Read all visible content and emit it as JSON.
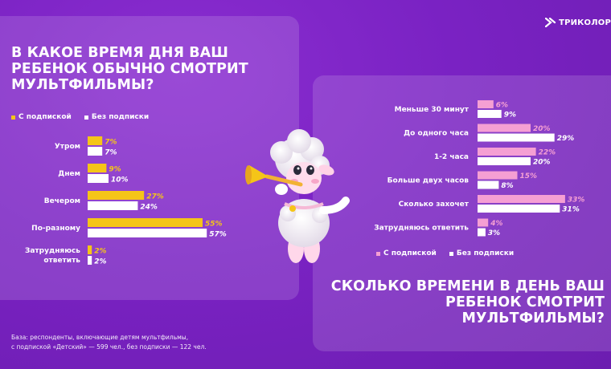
{
  "brand": {
    "logo_text": "ТРИКОЛОР",
    "accent": "#f5c518",
    "pink": "#f59fd3",
    "bg": "#7a22c3"
  },
  "left": {
    "title": "В КАКОЕ ВРЕМЯ ДНЯ ВАШ РЕБЕНОК ОБЫЧНО СМОТРИТ МУЛЬТФИЛЬМЫ?",
    "legend": {
      "with_sub": "С подпиской",
      "without_sub": "Без подписки"
    }
  },
  "right": {
    "title": "СКОЛЬКО ВРЕМЕНИ В ДЕНЬ ВАШ РЕБЕНОК СМОТРИТ МУЛЬТФИЛЬМЫ?",
    "legend": {
      "with_sub": "С подпиской",
      "without_sub": "Без подписки"
    }
  },
  "footnote": {
    "line1": "База: респонденты, включающие детям мультфильмы,",
    "line2": "с подпиской «Детский» — 599 чел., без подписки — 122 чел."
  },
  "chart_data": [
    {
      "type": "bar",
      "orientation": "horizontal",
      "title": "В КАКОЕ ВРЕМЯ ДНЯ ВАШ РЕБЕНОК ОБЫЧНО СМОТРИТ МУЛЬТФИЛЬМЫ?",
      "categories": [
        "Утром",
        "Днем",
        "Вечером",
        "По-разному",
        "Затрудняюсь ответить"
      ],
      "series": [
        {
          "name": "С подпиской",
          "color": "#f5c518",
          "values": [
            7,
            9,
            27,
            55,
            2
          ]
        },
        {
          "name": "Без подписки",
          "color": "#ffffff",
          "values": [
            7,
            10,
            24,
            57,
            2
          ]
        }
      ],
      "unit": "%",
      "legend": "top-left",
      "grid": false
    },
    {
      "type": "bar",
      "orientation": "horizontal",
      "title": "СКОЛЬКО ВРЕМЕНИ В ДЕНЬ ВАШ РЕБЕНОК СМОТРИТ МУЛЬТФИЛЬМЫ?",
      "categories": [
        "Меньше 30 минут",
        "До одного часа",
        "1-2 часа",
        "Больше двух часов",
        "Сколько захочет",
        "Затрудняюсь ответить"
      ],
      "series": [
        {
          "name": "С подпиской",
          "color": "#f59fd3",
          "values": [
            6,
            20,
            22,
            15,
            33,
            4
          ]
        },
        {
          "name": "Без подписки",
          "color": "#ffffff",
          "values": [
            9,
            29,
            20,
            8,
            31,
            3
          ]
        }
      ],
      "unit": "%",
      "legend": "bottom",
      "grid": false
    }
  ]
}
